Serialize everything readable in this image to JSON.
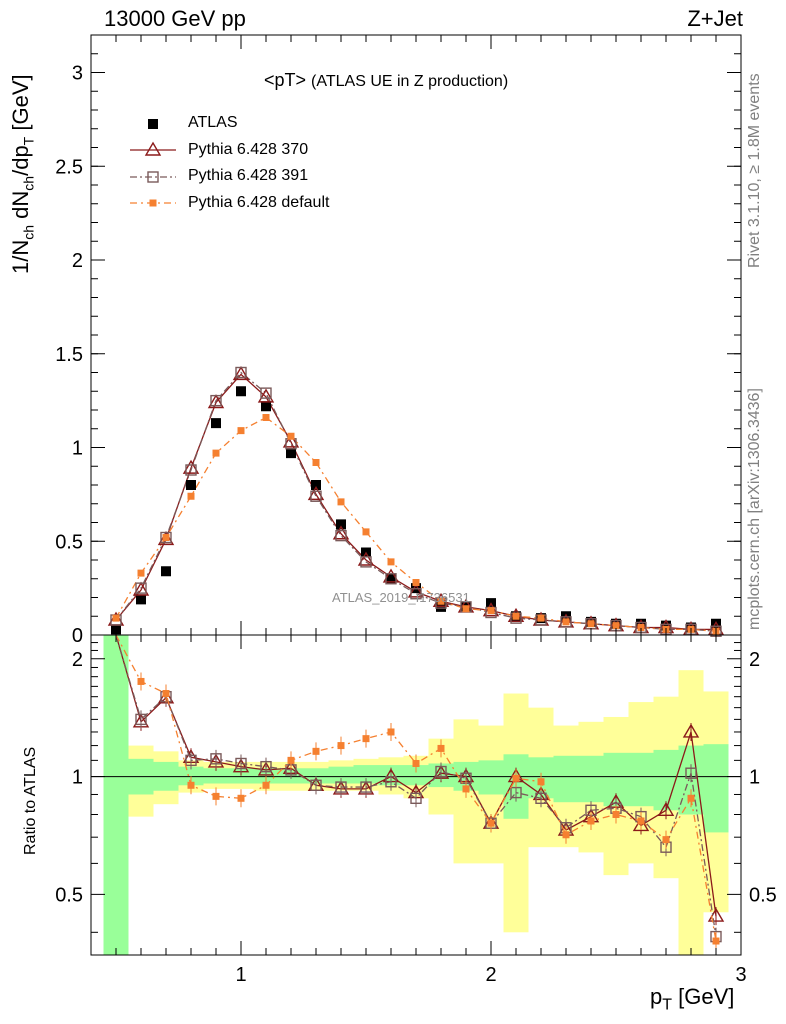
{
  "header": {
    "left": "13000 GeV pp",
    "right": "Z+Jet"
  },
  "side_labels": {
    "rivet": "Rivet 3.1.10, ≥ 1.8M events",
    "mcplots": "mcplots.cern.ch [arXiv:1306.3436]"
  },
  "watermark": "ATLAS_2019_I1736531",
  "colors": {
    "atlas": "#000000",
    "p370": "#8b1a1a",
    "p391": "#7a5a5a",
    "pdefault": "#f58030",
    "band_green": "#99ff99",
    "band_yellow": "#ffff99"
  },
  "chart_data": [
    {
      "type": "line",
      "title": "<pT> (ATLAS UE in Z production)",
      "title_main": "<pT>",
      "title_sub": "(ATLAS UE in Z production)",
      "ylabel_parts": [
        "1/N",
        "ch",
        " dN",
        "ch",
        "/dp",
        "T",
        " [GeV]"
      ],
      "xlim": [
        0.4,
        3.0
      ],
      "ylim": [
        0,
        3.2
      ],
      "yticks": [
        0,
        0.5,
        1,
        1.5,
        2,
        2.5,
        3
      ],
      "ytick_labels": [
        "0",
        "0.5",
        "1",
        "1.5",
        "2",
        "2.5",
        "3"
      ],
      "legend_position": "top-left",
      "x": [
        0.5,
        0.6,
        0.7,
        0.8,
        0.9,
        1.0,
        1.1,
        1.2,
        1.3,
        1.4,
        1.5,
        1.6,
        1.7,
        1.8,
        1.9,
        2.0,
        2.1,
        2.2,
        2.3,
        2.4,
        2.5,
        2.6,
        2.7,
        2.8,
        2.9
      ],
      "series": [
        {
          "name": "ATLAS",
          "marker": "square-filled",
          "color": "#000000",
          "values": [
            0.03,
            0.19,
            0.34,
            0.8,
            1.13,
            1.3,
            1.22,
            0.97,
            0.8,
            0.59,
            0.44,
            0.3,
            0.25,
            0.15,
            0.15,
            0.17,
            0.1,
            0.09,
            0.1,
            0.07,
            0.06,
            0.06,
            0.05,
            0.04,
            0.06
          ]
        },
        {
          "name": "Pythia 6.428 370",
          "marker": "triangle-open",
          "color": "#8b1a1a",
          "values": [
            0.08,
            0.24,
            0.51,
            0.89,
            1.24,
            1.39,
            1.27,
            1.03,
            0.75,
            0.54,
            0.4,
            0.31,
            0.23,
            0.18,
            0.15,
            0.13,
            0.1,
            0.08,
            0.07,
            0.06,
            0.05,
            0.04,
            0.04,
            0.03,
            0.03
          ]
        },
        {
          "name": "Pythia 6.428 391",
          "marker": "square-open",
          "color": "#7a5a5a",
          "values": [
            0.08,
            0.25,
            0.52,
            0.88,
            1.25,
            1.4,
            1.29,
            1.02,
            0.74,
            0.53,
            0.39,
            0.3,
            0.22,
            0.17,
            0.15,
            0.12,
            0.09,
            0.08,
            0.07,
            0.06,
            0.05,
            0.04,
            0.03,
            0.03,
            0.02
          ]
        },
        {
          "name": "Pythia 6.428 default",
          "marker": "square-small",
          "color": "#f58030",
          "values": [
            0.09,
            0.33,
            0.52,
            0.74,
            0.97,
            1.09,
            1.16,
            1.06,
            0.92,
            0.71,
            0.55,
            0.39,
            0.28,
            0.18,
            0.14,
            0.13,
            0.1,
            0.09,
            0.07,
            0.06,
            0.05,
            0.04,
            0.03,
            0.03,
            0.02
          ]
        }
      ]
    },
    {
      "type": "line",
      "ylabel": "Ratio to ATLAS",
      "xlabel_parts": [
        "p",
        "T",
        " [GeV]"
      ],
      "xlim": [
        0.4,
        3.0
      ],
      "ylim": [
        0.35,
        2.3
      ],
      "xticks": [
        1,
        2,
        3
      ],
      "xtick_labels": [
        "1",
        "2",
        "3"
      ],
      "yticks": [
        0.5,
        1,
        2
      ],
      "ytick_labels": [
        "0.5",
        "1",
        "2"
      ],
      "reference_line": 1,
      "x": [
        0.5,
        0.6,
        0.7,
        0.8,
        0.9,
        1.0,
        1.1,
        1.2,
        1.3,
        1.4,
        1.5,
        1.6,
        1.7,
        1.8,
        1.9,
        2.0,
        2.1,
        2.2,
        2.3,
        2.4,
        2.5,
        2.6,
        2.7,
        2.8,
        2.9
      ],
      "bands": {
        "green_lo": [
          0.35,
          0.9,
          0.92,
          0.95,
          0.96,
          0.96,
          0.96,
          0.96,
          0.96,
          0.96,
          0.96,
          0.95,
          0.95,
          0.94,
          0.92,
          0.9,
          0.78,
          0.88,
          0.86,
          0.86,
          0.84,
          0.84,
          0.82,
          0.8,
          0.72
        ],
        "green_hi": [
          2.3,
          1.11,
          1.09,
          1.06,
          1.05,
          1.05,
          1.05,
          1.05,
          1.05,
          1.06,
          1.07,
          1.07,
          1.07,
          1.08,
          1.09,
          1.1,
          1.14,
          1.12,
          1.13,
          1.13,
          1.15,
          1.15,
          1.17,
          1.2,
          1.21
        ],
        "yellow_lo": [
          0.35,
          0.79,
          0.85,
          0.91,
          0.93,
          0.93,
          0.92,
          0.92,
          0.92,
          0.92,
          0.92,
          0.9,
          0.88,
          0.8,
          0.6,
          0.6,
          0.4,
          0.66,
          0.66,
          0.64,
          0.56,
          0.6,
          0.55,
          0.35,
          0.45
        ],
        "yellow_hi": [
          2.3,
          1.2,
          1.16,
          1.1,
          1.09,
          1.09,
          1.09,
          1.09,
          1.09,
          1.1,
          1.11,
          1.12,
          1.13,
          1.25,
          1.4,
          1.35,
          1.63,
          1.5,
          1.35,
          1.38,
          1.42,
          1.55,
          1.6,
          1.87,
          1.65
        ]
      },
      "series": [
        {
          "name": "Pythia 6.428 370",
          "marker": "triangle-open",
          "color": "#8b1a1a",
          "values": [
            2.5,
            1.38,
            1.59,
            1.12,
            1.09,
            1.06,
            1.04,
            1.05,
            0.95,
            0.93,
            0.93,
            1.0,
            0.91,
            1.02,
            1.0,
            0.76,
            1.0,
            0.9,
            0.73,
            0.79,
            0.86,
            0.75,
            0.82,
            1.3,
            0.44
          ]
        },
        {
          "name": "Pythia 6.428 391",
          "marker": "square-open",
          "color": "#7a5a5a",
          "values": [
            2.5,
            1.4,
            1.6,
            1.1,
            1.11,
            1.08,
            1.06,
            1.04,
            0.95,
            0.94,
            0.94,
            0.97,
            0.88,
            1.03,
            0.99,
            0.76,
            0.91,
            0.88,
            0.74,
            0.82,
            0.83,
            0.79,
            0.66,
            1.02,
            0.39
          ]
        },
        {
          "name": "Pythia 6.428 default",
          "marker": "square-small",
          "color": "#f58030",
          "values": [
            2.5,
            1.75,
            1.63,
            0.95,
            0.89,
            0.88,
            0.95,
            1.1,
            1.16,
            1.2,
            1.25,
            1.3,
            1.08,
            1.18,
            0.93,
            0.76,
            0.99,
            0.97,
            0.71,
            0.77,
            0.8,
            0.77,
            0.69,
            0.88,
            0.38
          ]
        }
      ]
    }
  ]
}
